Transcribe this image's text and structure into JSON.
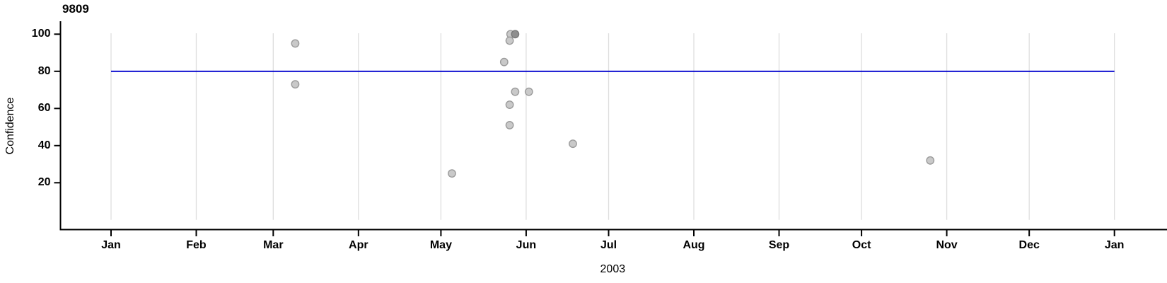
{
  "chart_data": {
    "type": "scatter",
    "title": "9809",
    "xlabel": "2003",
    "ylabel": "Confidence",
    "x_axis": {
      "unit": "day-of-year-2003",
      "range_days": [
        0,
        365
      ],
      "tick_labels": [
        "Jan",
        "Feb",
        "Mar",
        "Apr",
        "May",
        "Jun",
        "Jul",
        "Aug",
        "Sep",
        "Oct",
        "Nov",
        "Dec",
        "Jan"
      ],
      "tick_days": [
        0,
        31,
        59,
        90,
        120,
        151,
        181,
        212,
        243,
        273,
        304,
        334,
        365
      ],
      "year_label": "2003"
    },
    "y_axis": {
      "label": "Confidence",
      "ticks": [
        100,
        80,
        60,
        40,
        20
      ],
      "range": [
        0,
        105
      ]
    },
    "grid": {
      "show": true,
      "orientation": "vertical",
      "color": "#dedede",
      "span_values": [
        0,
        100.5
      ]
    },
    "reference_line": {
      "value": 80,
      "color": "#0000cd",
      "span_days": [
        0,
        365
      ]
    },
    "points": [
      {
        "date": "Mar 9",
        "day": 67,
        "value": 95,
        "shade": "light"
      },
      {
        "date": "Mar 9",
        "day": 67,
        "value": 73,
        "shade": "light"
      },
      {
        "date": "May 26",
        "day": 145.3,
        "value": 100,
        "shade": "light"
      },
      {
        "date": "May 28",
        "day": 147,
        "value": 100,
        "shade": "dark"
      },
      {
        "date": "May 26",
        "day": 145,
        "value": 96.5,
        "shade": "light"
      },
      {
        "date": "May 24",
        "day": 143,
        "value": 85,
        "shade": "light"
      },
      {
        "date": "May 28",
        "day": 147,
        "value": 69,
        "shade": "light"
      },
      {
        "date": "Jun 2",
        "day": 152,
        "value": 69,
        "shade": "light"
      },
      {
        "date": "May 26",
        "day": 145,
        "value": 62,
        "shade": "light"
      },
      {
        "date": "May 26",
        "day": 145,
        "value": 51,
        "shade": "light"
      },
      {
        "date": "Jun 17",
        "day": 168,
        "value": 41,
        "shade": "light"
      },
      {
        "date": "May 5",
        "day": 124,
        "value": 25,
        "shade": "light"
      },
      {
        "date": "Oct 26",
        "day": 298,
        "value": 32,
        "shade": "light"
      }
    ],
    "point_style": {
      "fill_light": "#c9c9c9",
      "stroke_light": "#9b9b9b",
      "fill_dark": "#8e8e8e",
      "stroke_dark": "#787878"
    },
    "axis_color": "#000000",
    "legend": {
      "show": false
    }
  }
}
